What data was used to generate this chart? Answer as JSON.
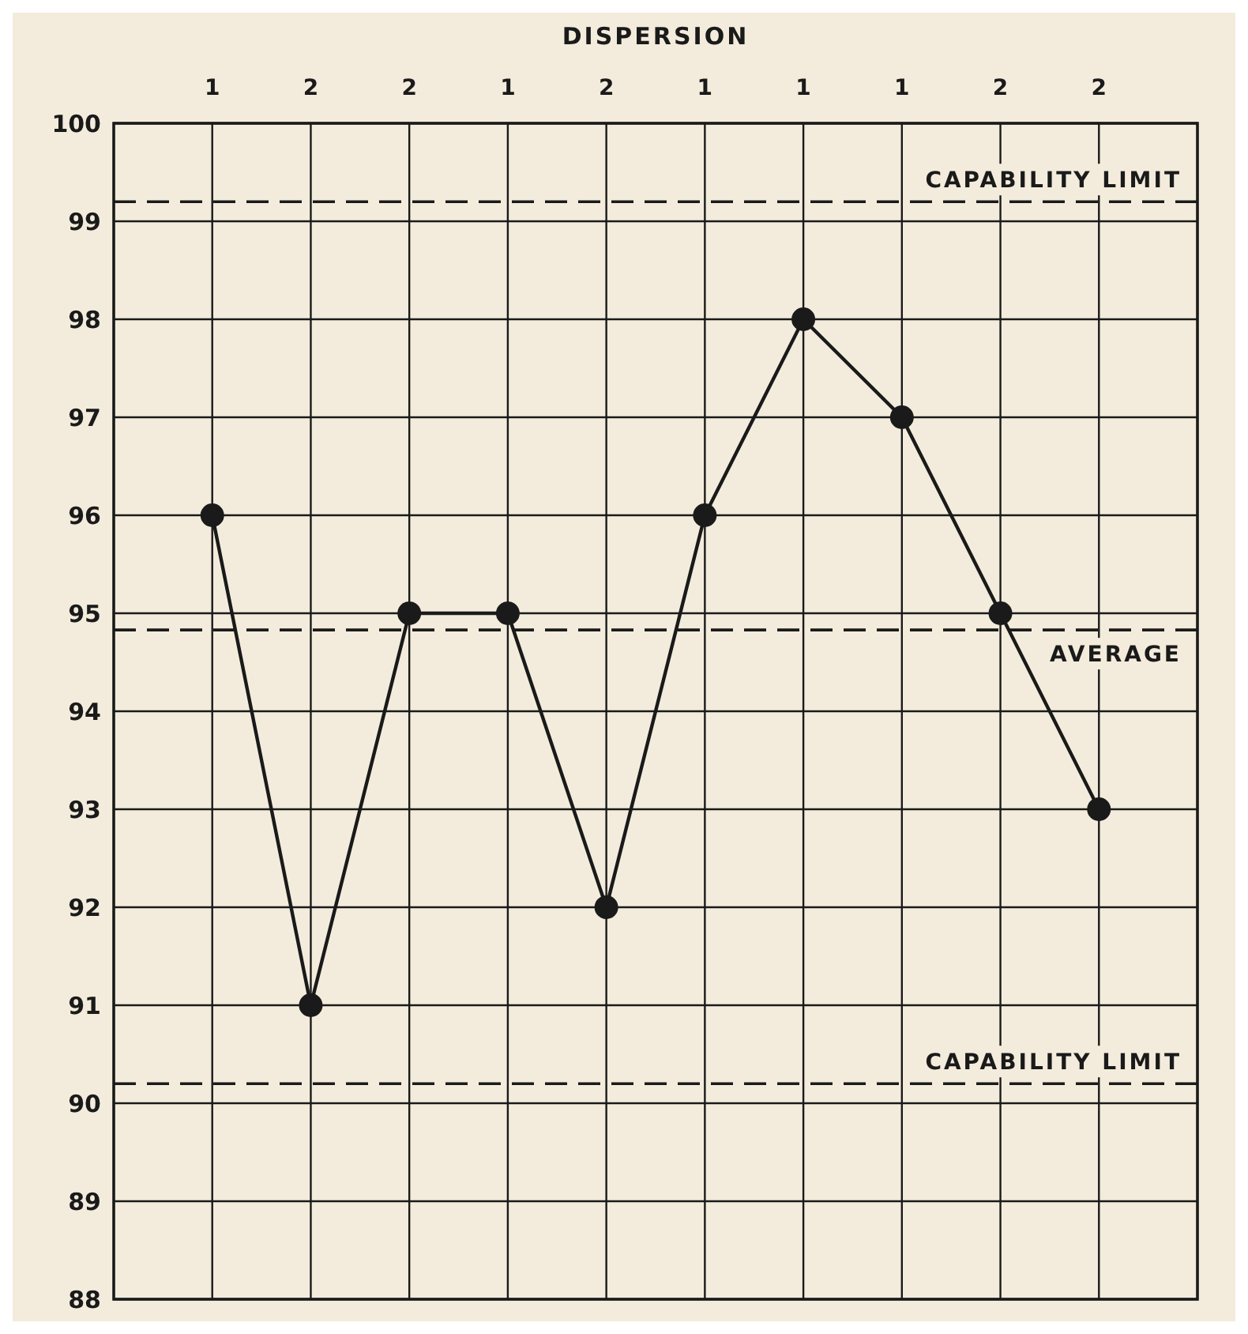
{
  "chart_data": {
    "type": "line",
    "xlabel": "DISPERSION",
    "categories": [
      "1",
      "2",
      "2",
      "1",
      "2",
      "1",
      "1",
      "1",
      "2",
      "2"
    ],
    "series": [
      {
        "color": "#1a1a1a",
        "values": [
          96,
          91,
          95,
          95,
          92,
          96,
          98,
          97,
          95,
          93
        ]
      }
    ],
    "ylim": [
      88,
      100
    ],
    "yticks": [
      88,
      89,
      90,
      91,
      92,
      93,
      94,
      95,
      96,
      97,
      98,
      99,
      100
    ],
    "grid": true,
    "marker": "circle",
    "line_style": "solid",
    "ref_lines": [
      {
        "axis": "y",
        "value": 99.2,
        "label": "CAPABILITY LIMIT",
        "line_style": "dashed"
      },
      {
        "axis": "y",
        "value": 94.83,
        "label": "AVERAGE",
        "line_style": "dashed"
      },
      {
        "axis": "y",
        "value": 90.2,
        "label": "CAPABILITY LIMIT",
        "line_style": "dashed"
      }
    ]
  }
}
